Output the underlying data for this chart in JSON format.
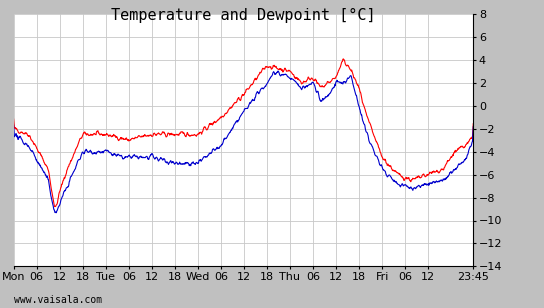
{
  "title": "Temperature and Dewpoint [’C]",
  "title_text": "Temperature and Dewpoint [°C]",
  "bg_color": "#c0c0c0",
  "plot_bg_color": "#ffffff",
  "grid_color": "#c8c8c8",
  "temp_color": "#ff0000",
  "dewpoint_color": "#0000cc",
  "ylim": [
    -14,
    8
  ],
  "yticks": [
    -14,
    -12,
    -10,
    -8,
    -6,
    -4,
    -2,
    0,
    2,
    4,
    6,
    8
  ],
  "xlabel_ticks": [
    "Mon",
    "06",
    "12",
    "18",
    "Tue",
    "06",
    "12",
    "18",
    "Wed",
    "06",
    "12",
    "18",
    "Thu",
    "06",
    "12",
    "18",
    "Fri",
    "06",
    "12",
    "23:45"
  ],
  "watermark": "www.vaisala.com",
  "title_fontsize": 11,
  "tick_fontsize": 8,
  "line_width": 0.8,
  "num_points": 1150,
  "seed": 42,
  "total_hours": 119.75
}
